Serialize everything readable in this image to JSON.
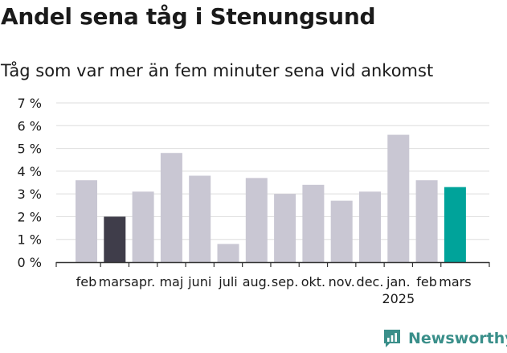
{
  "header": {
    "title": "Andel sena tåg i Stenungsund",
    "subtitle": "Tåg som var mer än fem minuter sena vid ankomst"
  },
  "brand": {
    "name": "Newsworthy",
    "color": "#3a8f8a",
    "icon": "newsworthy-chart-icon"
  },
  "colors": {
    "default": "#c9c7d3",
    "highlight_dark": "#3f3d4a",
    "highlight_accent": "#00a39a",
    "grid": "#dddddd"
  },
  "chart_data": {
    "type": "bar",
    "title": "Andel sena tåg i Stenungsund",
    "subtitle": "Tåg som var mer än fem minuter sena vid ankomst",
    "xlabel": "",
    "ylabel": "",
    "categories": [
      "feb",
      "mars",
      "apr.",
      "maj",
      "juni",
      "juli",
      "aug.",
      "sep.",
      "okt.",
      "nov.",
      "dec.",
      "jan.",
      "feb",
      "mars"
    ],
    "year_label": "2025",
    "values": [
      3.6,
      2.0,
      3.1,
      4.8,
      3.8,
      0.8,
      3.7,
      3.0,
      3.4,
      2.7,
      3.1,
      5.6,
      3.6,
      3.3
    ],
    "bar_colors": [
      "#c9c7d3",
      "#3f3d4a",
      "#c9c7d3",
      "#c9c7d3",
      "#c9c7d3",
      "#c9c7d3",
      "#c9c7d3",
      "#c9c7d3",
      "#c9c7d3",
      "#c9c7d3",
      "#c9c7d3",
      "#c9c7d3",
      "#c9c7d3",
      "#00a39a"
    ],
    "ylim": [
      0,
      7
    ],
    "yticks": [
      0,
      1,
      2,
      3,
      4,
      5,
      6,
      7
    ],
    "ytick_labels": [
      "0 %",
      "1 %",
      "2 %",
      "3 %",
      "4 %",
      "5 %",
      "6 %",
      "7 %"
    ],
    "grid": true,
    "legend": "none"
  }
}
